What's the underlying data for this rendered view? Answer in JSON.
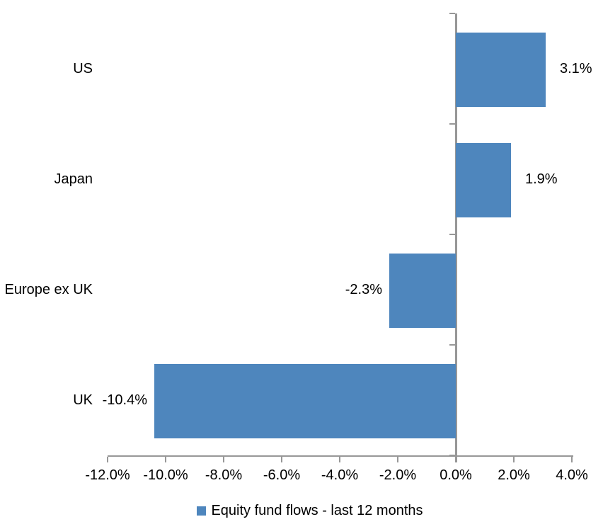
{
  "chart_data": {
    "type": "bar",
    "orientation": "horizontal",
    "title": "",
    "categories": [
      "US",
      "Japan",
      "Europe ex UK",
      "UK"
    ],
    "values": [
      3.1,
      1.9,
      -2.3,
      -10.4
    ],
    "value_labels": [
      "3.1%",
      "1.9%",
      "-2.3%",
      "-10.4%"
    ],
    "series": [
      {
        "name": "Equity fund flows - last 12 months",
        "values": [
          3.1,
          1.9,
          -2.3,
          -10.4
        ]
      }
    ],
    "xlim": [
      -12,
      4
    ],
    "x_tick_step": 2,
    "x_tick_labels": [
      "-12.0%",
      "-10.0%",
      "-8.0%",
      "-6.0%",
      "-4.0%",
      "-2.0%",
      "0.0%",
      "2.0%",
      "4.0%"
    ],
    "grid": false,
    "legend": {
      "position": "bottom",
      "label": "Equity fund flows - last 12 months"
    },
    "colors": {
      "bar": "#4E86BD",
      "axis": "#979797",
      "text": "#000000",
      "background": "#FFFFFF"
    }
  }
}
